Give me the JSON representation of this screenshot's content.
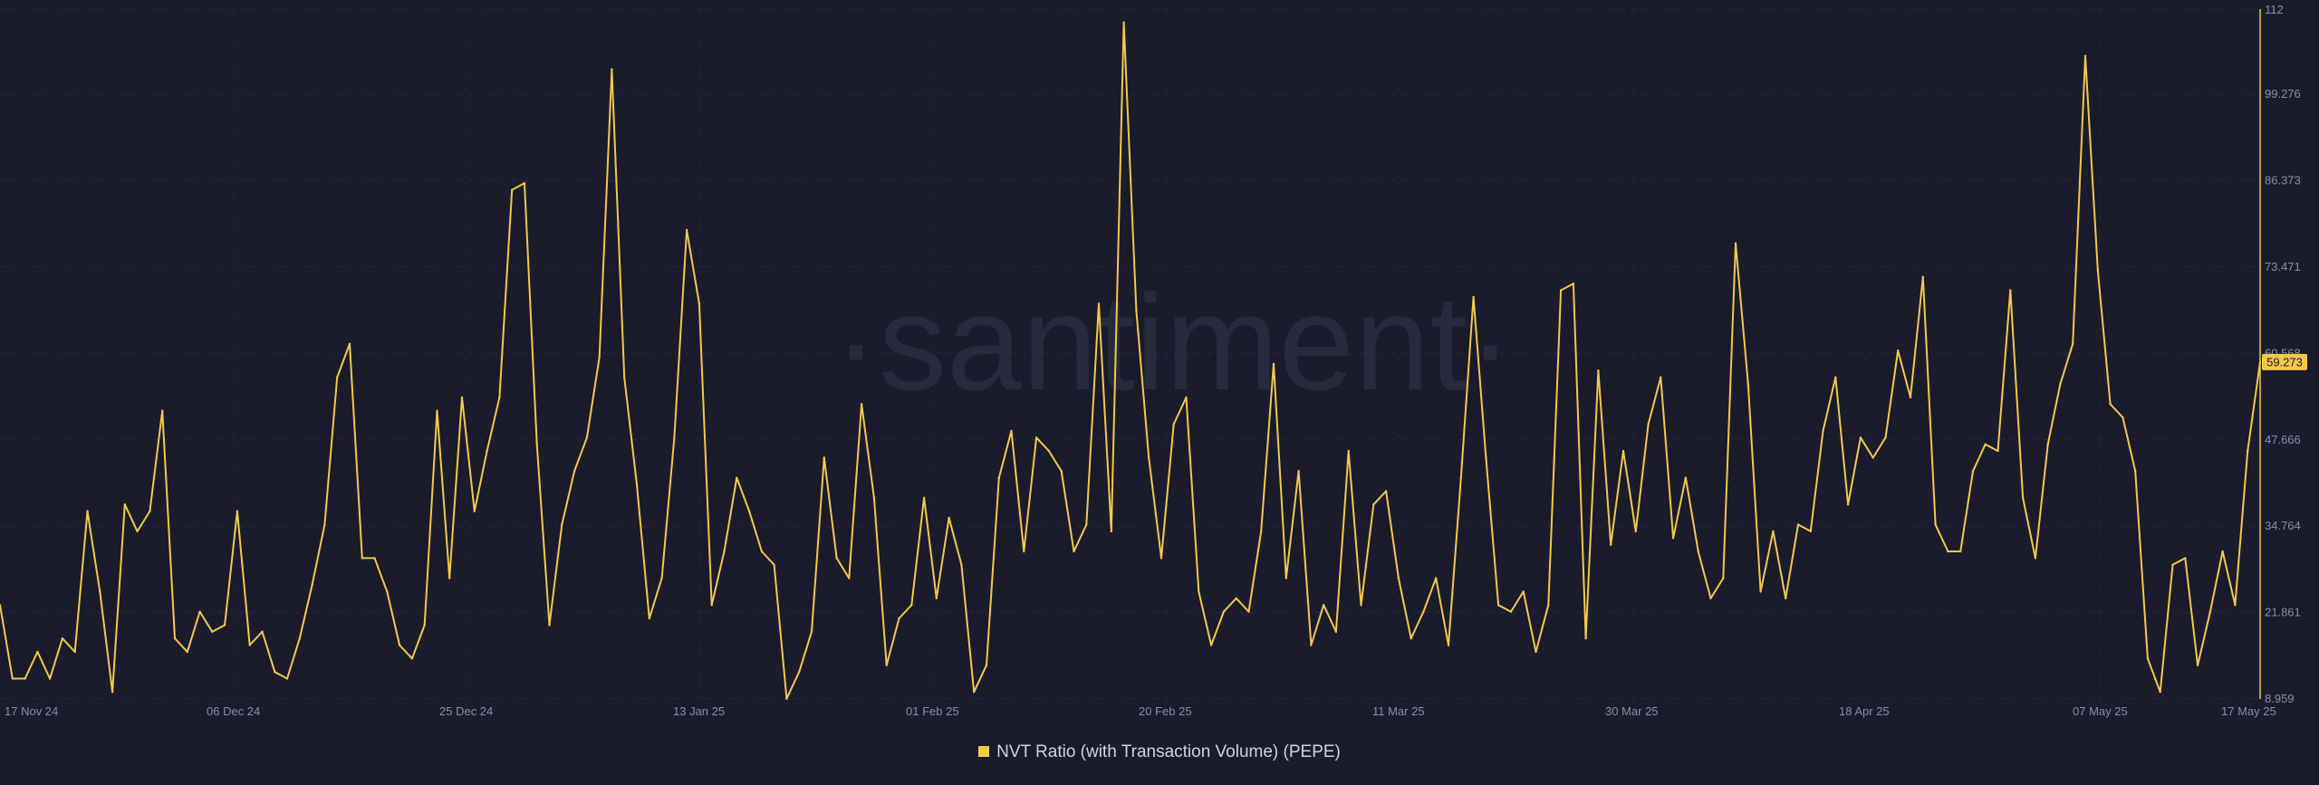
{
  "watermark": "·santiment·",
  "legend": {
    "label": "NVT Ratio (with Transaction Volume) (PEPE)",
    "color": "#f4c94a"
  },
  "current_value_label": "59.273",
  "chart_data": {
    "type": "line",
    "title": "",
    "xlabel": "",
    "ylabel": "",
    "grid": true,
    "legend_position": "bottom-center",
    "y_axis_side": "right",
    "ylim": [
      8.959,
      112
    ],
    "x_tick_labels": [
      "17 Nov 24",
      "06 Dec 24",
      "25 Dec 24",
      "13 Jan 25",
      "01 Feb 25",
      "20 Feb 25",
      "11 Mar 25",
      "30 Mar 25",
      "18 Apr 25",
      "07 May 25",
      "17 May 25"
    ],
    "y_tick_labels": [
      "112",
      "99.276",
      "86.373",
      "73.471",
      "60.568",
      "47.666",
      "34.764",
      "21.861",
      "8.959"
    ],
    "y_tick_values": [
      112,
      99.276,
      86.373,
      73.471,
      60.568,
      47.666,
      34.764,
      21.861,
      8.959
    ],
    "x_start": "2024-11-17",
    "x_end": "2025-05-17",
    "series": [
      {
        "name": "NVT Ratio (with Transaction Volume) (PEPE)",
        "color": "#f4c94a",
        "values": [
          23,
          12,
          12,
          16,
          12,
          18,
          16,
          37,
          25,
          10,
          38,
          34,
          37,
          52,
          18,
          16,
          22,
          19,
          20,
          37,
          17,
          19,
          13,
          12,
          18,
          26,
          35,
          57,
          62,
          30,
          30,
          25,
          17,
          15,
          20,
          52,
          27,
          54,
          37,
          46,
          54,
          85,
          86,
          47,
          20,
          35,
          43,
          48,
          60,
          103,
          57,
          41,
          21,
          27,
          48,
          79,
          68,
          23,
          31,
          42,
          37,
          31,
          29,
          9,
          13,
          19,
          45,
          30,
          27,
          53,
          39,
          14,
          21,
          23,
          39,
          24,
          36,
          29,
          10,
          14,
          42,
          49,
          31,
          48,
          46,
          43,
          31,
          35,
          68,
          34,
          110,
          67,
          45,
          30,
          50,
          54,
          25,
          17,
          22,
          24,
          22,
          34,
          59,
          27,
          43,
          17,
          23,
          19,
          46,
          23,
          38,
          40,
          27,
          18,
          22,
          27,
          17,
          42,
          69,
          45,
          23,
          22,
          25,
          16,
          23,
          70,
          71,
          18,
          58,
          32,
          46,
          34,
          50,
          57,
          33,
          42,
          31,
          24,
          27,
          77,
          56,
          25,
          34,
          24,
          35,
          34,
          49,
          57,
          38,
          48,
          45,
          48,
          61,
          54,
          72,
          35,
          31,
          31,
          43,
          47,
          46,
          70,
          39,
          30,
          47,
          56,
          62,
          105,
          73,
          53,
          51,
          43,
          15,
          10,
          29,
          30,
          14,
          22,
          31,
          23,
          46,
          59.273
        ]
      }
    ]
  }
}
